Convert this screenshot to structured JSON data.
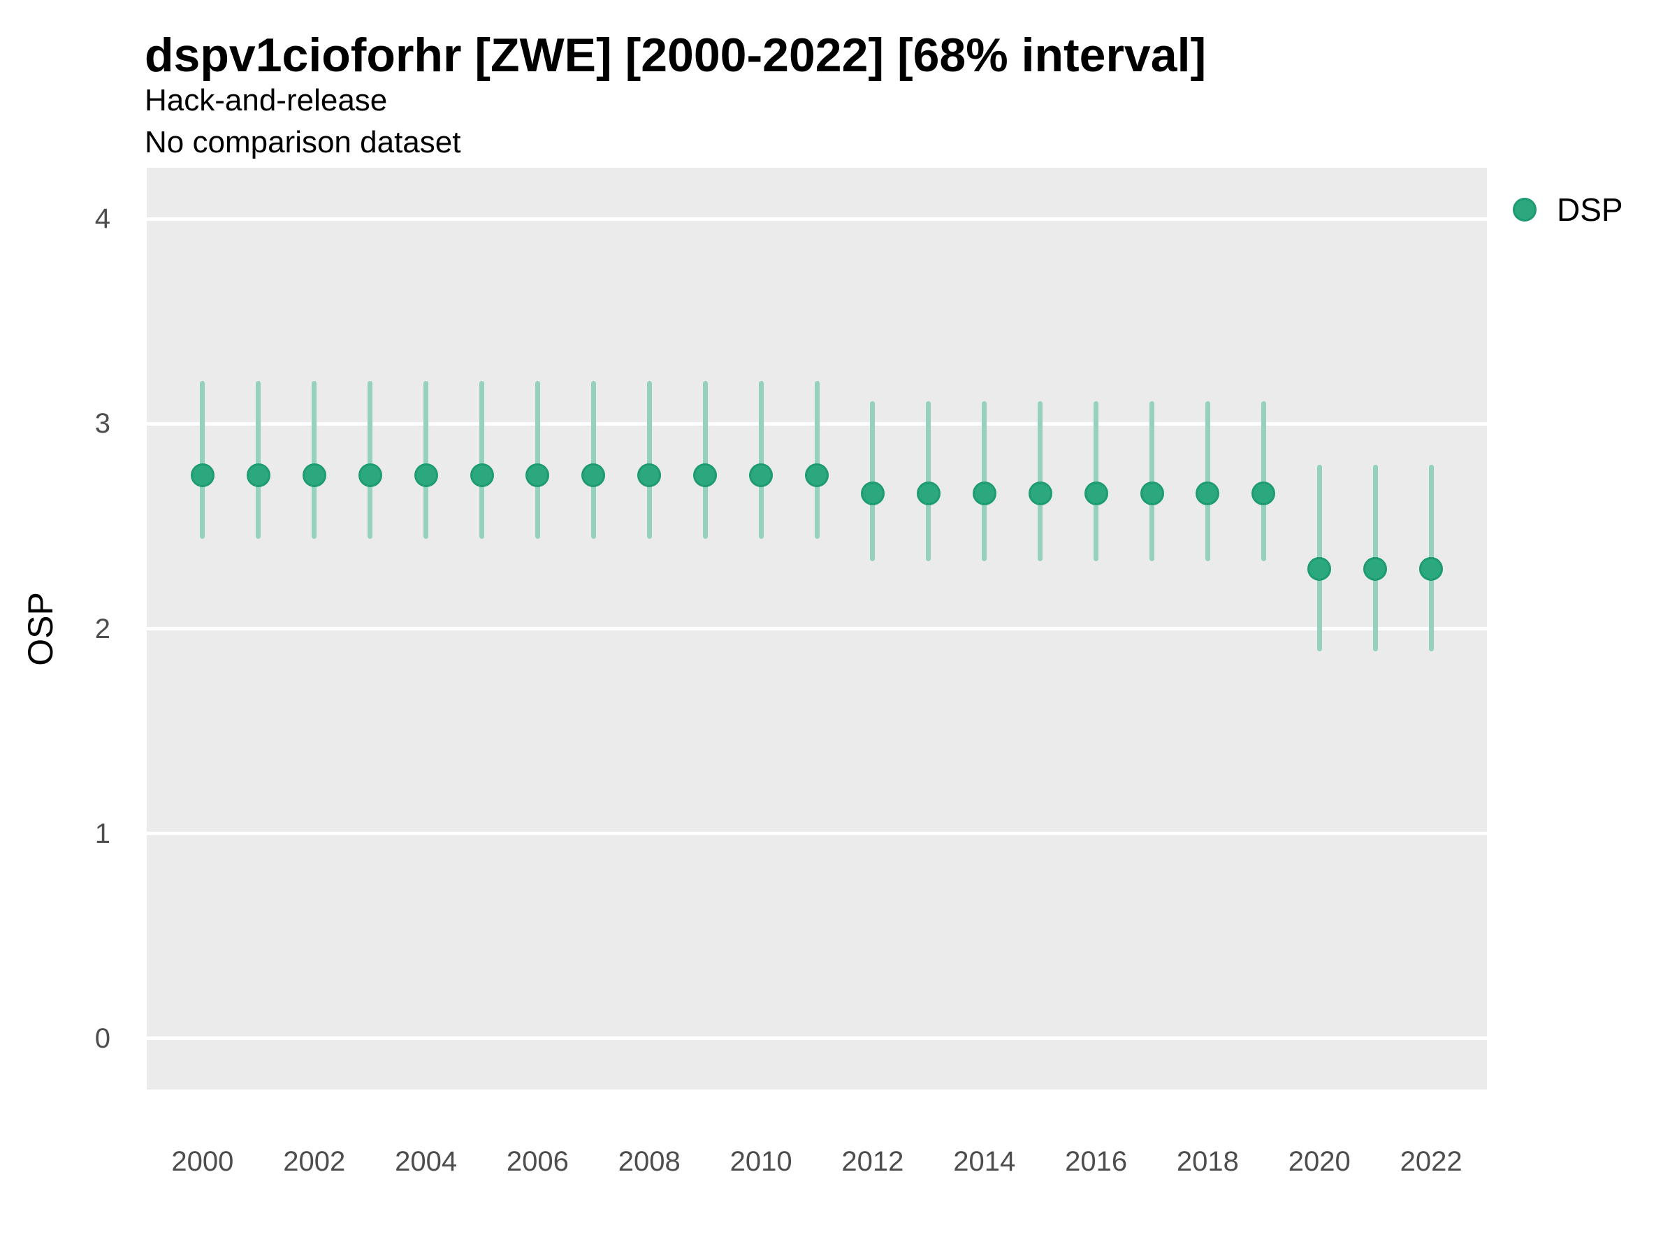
{
  "chart_data": {
    "type": "pointrange",
    "title": "dspv1cioforhr [ZWE] [2000-2022] [68% interval]",
    "subtitle": [
      "Hack-and-release",
      "No comparison dataset"
    ],
    "xlabel": "",
    "ylabel": "OSP",
    "interval_label": "68% interval",
    "series": [
      {
        "name": "DSP",
        "points": [
          {
            "year": 2000,
            "est": 2.75,
            "lo": 2.44,
            "hi": 3.21
          },
          {
            "year": 2001,
            "est": 2.75,
            "lo": 2.44,
            "hi": 3.21
          },
          {
            "year": 2002,
            "est": 2.75,
            "lo": 2.44,
            "hi": 3.21
          },
          {
            "year": 2003,
            "est": 2.75,
            "lo": 2.44,
            "hi": 3.21
          },
          {
            "year": 2004,
            "est": 2.75,
            "lo": 2.44,
            "hi": 3.21
          },
          {
            "year": 2005,
            "est": 2.75,
            "lo": 2.44,
            "hi": 3.21
          },
          {
            "year": 2006,
            "est": 2.75,
            "lo": 2.44,
            "hi": 3.21
          },
          {
            "year": 2007,
            "est": 2.75,
            "lo": 2.44,
            "hi": 3.21
          },
          {
            "year": 2008,
            "est": 2.75,
            "lo": 2.44,
            "hi": 3.21
          },
          {
            "year": 2009,
            "est": 2.75,
            "lo": 2.44,
            "hi": 3.21
          },
          {
            "year": 2010,
            "est": 2.75,
            "lo": 2.44,
            "hi": 3.21
          },
          {
            "year": 2011,
            "est": 2.75,
            "lo": 2.44,
            "hi": 3.21
          },
          {
            "year": 2012,
            "est": 2.66,
            "lo": 2.33,
            "hi": 3.11
          },
          {
            "year": 2013,
            "est": 2.66,
            "lo": 2.33,
            "hi": 3.11
          },
          {
            "year": 2014,
            "est": 2.66,
            "lo": 2.33,
            "hi": 3.11
          },
          {
            "year": 2015,
            "est": 2.66,
            "lo": 2.33,
            "hi": 3.11
          },
          {
            "year": 2016,
            "est": 2.66,
            "lo": 2.33,
            "hi": 3.11
          },
          {
            "year": 2017,
            "est": 2.66,
            "lo": 2.33,
            "hi": 3.11
          },
          {
            "year": 2018,
            "est": 2.66,
            "lo": 2.33,
            "hi": 3.11
          },
          {
            "year": 2019,
            "est": 2.66,
            "lo": 2.33,
            "hi": 3.11
          },
          {
            "year": 2020,
            "est": 2.29,
            "lo": 1.89,
            "hi": 2.8
          },
          {
            "year": 2021,
            "est": 2.29,
            "lo": 1.89,
            "hi": 2.8
          },
          {
            "year": 2022,
            "est": 2.29,
            "lo": 1.89,
            "hi": 2.8
          }
        ]
      }
    ],
    "xticks": [
      2000,
      2002,
      2004,
      2006,
      2008,
      2010,
      2012,
      2014,
      2016,
      2018,
      2020,
      2022
    ],
    "yticks": [
      4,
      3,
      2,
      1,
      0
    ],
    "xlim": [
      1999,
      2023
    ],
    "ylim": [
      -0.25,
      4.25
    ],
    "grid": "horizontal major gridlines only, white on grey panel",
    "legend_position": "right",
    "colors": {
      "point_fill": "#2CA87E",
      "point_stroke": "#1E9C70",
      "range_line": "#95D2BD",
      "panel_bg": "#EBEBEB",
      "grid_line": "#FFFFFF",
      "axis_text": "#4D4D4D",
      "text": "#000000"
    }
  }
}
